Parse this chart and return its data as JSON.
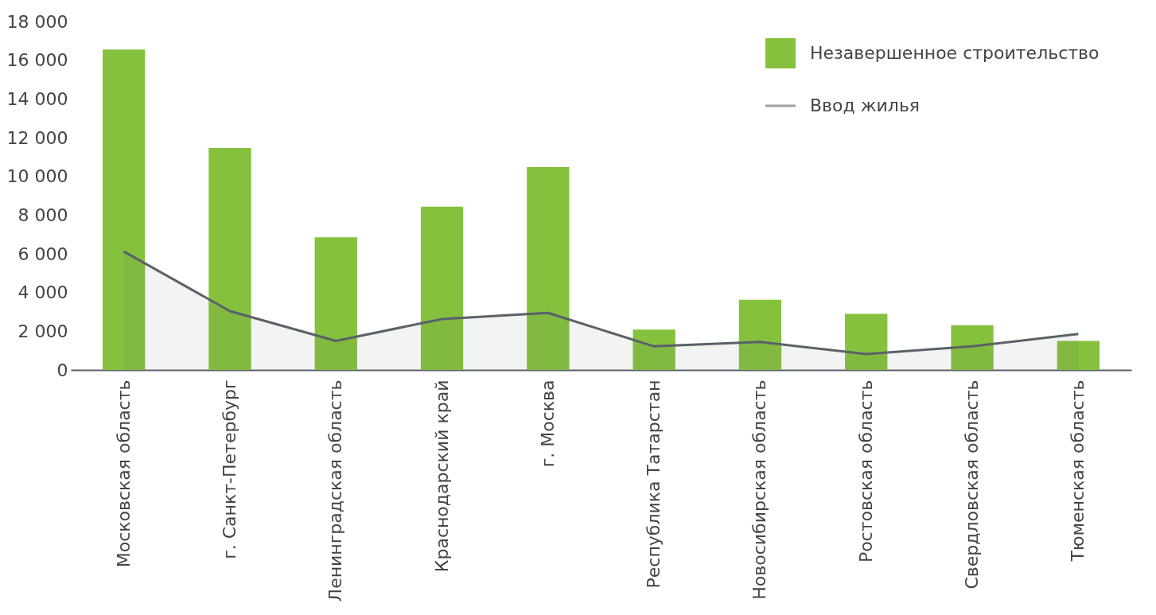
{
  "chart_data": {
    "type": "bar",
    "categories": [
      "Московская область",
      "г. Санкт-Петербург",
      "Ленинградская область",
      "Краснодарский край",
      "г. Москва",
      "Республика Татарстан",
      "Новосибирская область",
      "Ростовская область",
      "Свердловская область",
      "Тюменская область"
    ],
    "series": [
      {
        "name": "Незавершенное строительство",
        "color": "#86c13d",
        "values": [
          16550,
          11470,
          6850,
          8440,
          10480,
          2090,
          3630,
          2900,
          2310,
          1500
        ]
      },
      {
        "name": "Ввод жилья",
        "type": "area",
        "color": "#5a6169",
        "values": [
          6120,
          3040,
          1500,
          2630,
          2950,
          1220,
          1450,
          820,
          1220,
          1860
        ]
      }
    ],
    "ylim": [
      0,
      18000
    ],
    "yticks": [
      0,
      {
        "value": 2000,
        "label": "2 000"
      },
      {
        "value": 4000,
        "label": "4 000"
      },
      {
        "value": 6000,
        "label": "6 000"
      },
      {
        "value": 8000,
        "label": "8 000"
      },
      {
        "value": 10000,
        "label": "10 000"
      },
      {
        "value": 12000,
        "label": "12 000"
      },
      {
        "value": 14000,
        "label": "14 000"
      },
      {
        "value": 16000,
        "label": "16 000"
      },
      {
        "value": 18000,
        "label": "18 000"
      }
    ],
    "grid": false,
    "legend": "top right"
  }
}
